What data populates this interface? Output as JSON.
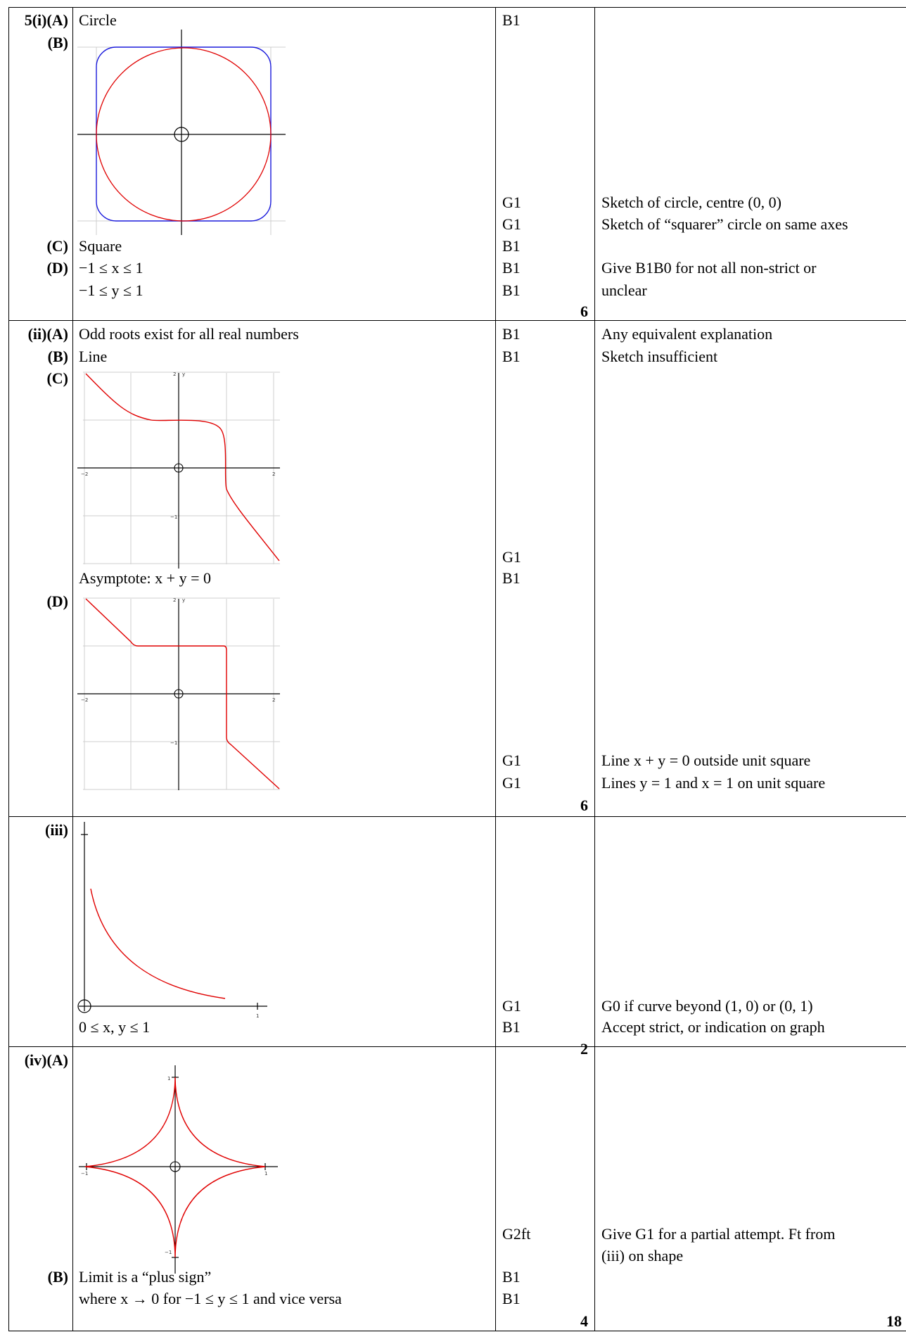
{
  "section1": {
    "label_main": "5(i)(A)",
    "label_b": "(B)",
    "label_c": "(C)",
    "label_d": "(D)",
    "answer_a": "Circle",
    "answer_c": "Square",
    "answer_d1": "−1 ≤ x ≤ 1",
    "answer_d2": "−1 ≤ y ≤ 1",
    "marks": [
      "B1",
      "G1",
      "G1",
      "B1",
      "B1",
      "B1"
    ],
    "notes": [
      "Sketch of circle, centre (0, 0)",
      "Sketch of “squarer” circle on same axes",
      "Give B1B0 for not all non-strict or",
      "unclear"
    ],
    "total": "6"
  },
  "section2": {
    "label_main": "(ii)(A)",
    "label_b": "(B)",
    "label_c": "(C)",
    "label_d": "(D)",
    "answer_a": "Odd roots exist for all real numbers",
    "answer_b": "Line",
    "asymptote": "Asymptote: x + y = 0",
    "marks": [
      "B1",
      "B1",
      "G1",
      "B1",
      "G1",
      "G1"
    ],
    "notes": [
      "Any equivalent explanation",
      "Sketch insufficient",
      "Line x + y = 0 outside unit square",
      "Lines y = 1 and x = 1 on unit square"
    ],
    "total": "6",
    "ticks": {
      "y_top": "2",
      "y_label": "y",
      "x_left": "−2",
      "x_right": "2",
      "y_neg": "−1"
    }
  },
  "section3": {
    "label_main": "(iii)",
    "answer": "0 ≤ x, y ≤ 1",
    "marks": [
      "G1",
      "B1"
    ],
    "notes": [
      "G0 if curve beyond (1, 0) or (0, 1)",
      "Accept strict, or indication on graph"
    ],
    "total": "2",
    "tick_x": "1"
  },
  "section4": {
    "label_main": "(iv)(A)",
    "label_b": "(B)",
    "answer_b1": "Limit is a “plus sign”",
    "answer_b2": "where x → 0 for −1 ≤ y ≤ 1 and vice versa",
    "marks": [
      "G2ft",
      "B1",
      "B1"
    ],
    "notes": [
      "Give G1 for a partial attempt. Ft from",
      "(iii) on shape"
    ],
    "total": "4",
    "ticks": {
      "top": "1",
      "bottom": "−1",
      "left": "−1",
      "right": "1"
    }
  },
  "grand_total": "18",
  "colors": {
    "curve_red": "#e00000",
    "curve_blue": "#1a1adc",
    "grid": "#cfcfcf"
  }
}
